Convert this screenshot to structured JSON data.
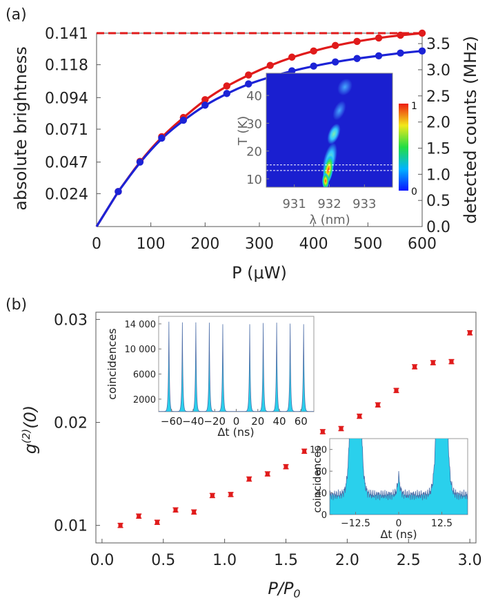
{
  "chart_data": [
    {
      "panel": "(a)",
      "type": "scatter",
      "xlabel": "P (μW)",
      "ylabel_left": "absolute brightness",
      "ylabel_right": "detected counts (MHz)",
      "xlim": [
        0,
        600
      ],
      "ylim_left": [
        0,
        0.141
      ],
      "ylim_right": [
        0,
        3.7
      ],
      "x_ticks": [
        0,
        100,
        200,
        300,
        400,
        500,
        600
      ],
      "y_ticks_left": [
        "0.141",
        "0.118",
        "0.094",
        "0.071",
        "0.047",
        "0.024"
      ],
      "y_ticks_left_values": [
        0.141,
        0.118,
        0.094,
        0.071,
        0.047,
        0.024
      ],
      "y_ticks_right": [
        "0.0",
        "0.5",
        "1.0",
        "1.5",
        "2.0",
        "2.5",
        "3.0",
        "3.5"
      ],
      "y_ticks_right_values": [
        0,
        0.5,
        1.0,
        1.5,
        2.0,
        2.5,
        3.0,
        3.5
      ],
      "saturation_line": 0.141,
      "series": [
        {
          "color": "#e01b1b",
          "x": [
            40,
            80,
            120,
            160,
            200,
            240,
            280,
            320,
            360,
            400,
            440,
            480,
            520,
            560,
            600
          ],
          "values": [
            0.0255,
            0.0475,
            0.0655,
            0.0795,
            0.0925,
            0.1025,
            0.1105,
            0.1175,
            0.1235,
            0.128,
            0.132,
            0.135,
            0.1375,
            0.1395,
            0.141
          ]
        },
        {
          "color": "#1c23d6",
          "x": [
            40,
            80,
            120,
            160,
            200,
            240,
            280,
            320,
            360,
            400,
            440,
            480,
            520,
            560,
            600
          ],
          "values": [
            0.0255,
            0.047,
            0.0645,
            0.0775,
            0.0885,
            0.097,
            0.104,
            0.109,
            0.1135,
            0.117,
            0.12,
            0.1225,
            0.1245,
            0.1265,
            0.128
          ]
        }
      ],
      "inset": {
        "type": "heatmap",
        "xlabel": "λ (nm)",
        "ylabel": "T (K)",
        "xlim": [
          930.2,
          933.8
        ],
        "ylim": [
          7,
          48
        ],
        "x_ticks": [
          931,
          932,
          933
        ],
        "y_ticks": [
          10,
          20,
          30,
          40
        ],
        "colorbar_ticks": [
          "0",
          "1"
        ],
        "highlight_band": [
          13,
          15
        ]
      }
    },
    {
      "panel": "(b)",
      "type": "scatter",
      "xlabel": "P/P0",
      "ylabel": "g(2)(0)",
      "xlim": [
        -0.05,
        3.05
      ],
      "ylim": [
        0.0083,
        0.0307
      ],
      "x_ticks": [
        "0.0",
        "0.5",
        "1.0",
        "1.5",
        "2.0",
        "2.5",
        "3.0"
      ],
      "x_ticks_values": [
        0,
        0.5,
        1.0,
        1.5,
        2.0,
        2.5,
        3.0
      ],
      "y_ticks": [
        "0.01",
        "0.02",
        "0.03"
      ],
      "y_ticks_values": [
        0.01,
        0.02,
        0.03
      ],
      "series": [
        {
          "color": "#e01b1b",
          "x": [
            0.15,
            0.3,
            0.45,
            0.6,
            0.75,
            0.9,
            1.05,
            1.2,
            1.35,
            1.5,
            1.65,
            1.8,
            1.95,
            2.1,
            2.25,
            2.4,
            2.55,
            2.7,
            2.85,
            3.0
          ],
          "values": [
            0.01,
            0.0109,
            0.0103,
            0.0115,
            0.0113,
            0.0129,
            0.013,
            0.0145,
            0.015,
            0.0157,
            0.0172,
            0.0191,
            0.0194,
            0.0206,
            0.0217,
            0.0231,
            0.0254,
            0.0258,
            0.0259,
            0.0287
          ],
          "err": 0.0002
        }
      ],
      "inset1": {
        "type": "line",
        "xlabel": "Δt (ns)",
        "ylabel": "coincidences",
        "xlim": [
          -72,
          72
        ],
        "ylim": [
          0,
          15200
        ],
        "x_ticks": [
          -60,
          -40,
          -20,
          0,
          20,
          40,
          60
        ],
        "x_tick_labels": [
          "−60",
          "−40",
          "−20",
          "0",
          "20",
          "40",
          "60"
        ],
        "y_ticks": [
          2000,
          6000,
          10000,
          14000
        ],
        "y_tick_labels": [
          "2000",
          "6000",
          "10 000",
          "14 000"
        ],
        "peaks_x": [
          -62.5,
          -50,
          -37.5,
          -25,
          -12.5,
          12.5,
          25,
          37.5,
          50,
          62.5
        ],
        "peaks_y": [
          14300,
          14200,
          14200,
          14150,
          13900,
          13900,
          14100,
          14150,
          14000,
          13900
        ]
      },
      "inset2": {
        "type": "line",
        "xlabel": "Δt (ns)",
        "ylabel": "coincidences",
        "xlim": [
          -20,
          20
        ],
        "ylim": [
          0,
          140
        ],
        "x_ticks": [
          -12.5,
          0,
          12.5
        ],
        "x_tick_labels": [
          "−12.5",
          "0",
          "12.5"
        ],
        "y_ticks": [
          0,
          40,
          80,
          120
        ],
        "y_tick_labels": [
          "0",
          "40",
          "80",
          "120"
        ]
      }
    }
  ]
}
